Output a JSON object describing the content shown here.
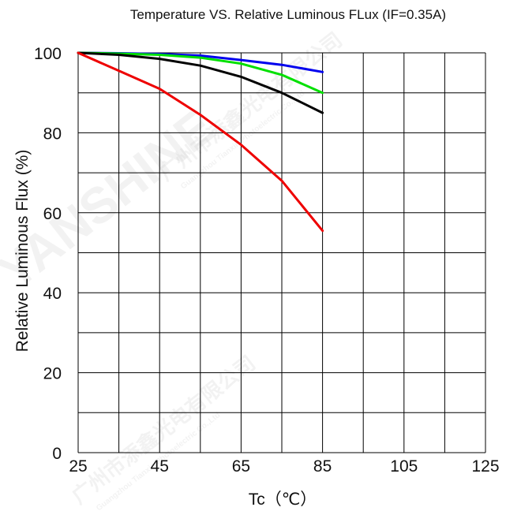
{
  "chart_data": {
    "type": "line",
    "title": "Temperature VS. Relative Luminous FLux (IF=0.35A)",
    "xlabel": "Tc（℃）",
    "ylabel": "Relative  Luminous   Flux  (%)",
    "xlim": [
      25,
      125
    ],
    "ylim": [
      0,
      100
    ],
    "x_ticks": [
      "25",
      "45",
      "65",
      "85",
      "105",
      "125"
    ],
    "y_ticks": [
      "0",
      "20",
      "40",
      "60",
      "80",
      "100"
    ],
    "grid": true,
    "series": [
      {
        "color": "#0000ee",
        "x": [
          25,
          35,
          45,
          55,
          65,
          75,
          85
        ],
        "y": [
          100,
          99.9,
          99.7,
          99.3,
          98.2,
          97,
          95.2
        ]
      },
      {
        "color": "#00e000",
        "x": [
          25,
          35,
          45,
          55,
          65,
          75,
          85
        ],
        "y": [
          100,
          99.8,
          99.5,
          98.8,
          97.3,
          94.5,
          90
        ]
      },
      {
        "color": "#000000",
        "x": [
          25,
          35,
          45,
          55,
          65,
          75,
          85
        ],
        "y": [
          100,
          99.5,
          98.5,
          96.8,
          94,
          90,
          85
        ]
      },
      {
        "color": "#ee0000",
        "x": [
          25,
          35,
          45,
          55,
          65,
          75,
          85
        ],
        "y": [
          100,
          95.5,
          91,
          84.5,
          77,
          68,
          55.5
        ]
      }
    ]
  },
  "watermark": {
    "brand": "YANSHINE",
    "cn": "广州市添鑫光电有限公司",
    "en": "Guangzhou Tianxin Photoelectric Co.,Ltd"
  }
}
